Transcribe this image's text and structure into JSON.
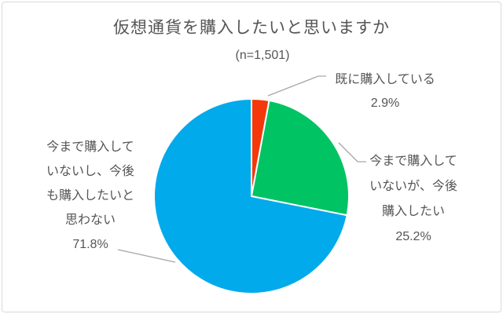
{
  "title": "仮想通貨を購入したいと思いますか",
  "subtitle": "(n=1,501)",
  "chart_data": {
    "type": "pie",
    "title": "仮想通貨を購入したいと思いますか",
    "subtitle": "(n=1,501)",
    "start_angle_deg": -90,
    "direction": "clockwise",
    "legend_position": "callout-labels",
    "slices": [
      {
        "label": "既に購入している",
        "value": 2.9,
        "percent_label": "2.9%",
        "color": "#F4380B"
      },
      {
        "label": "今まで購入していないが、今後購入したい",
        "value": 25.2,
        "percent_label": "25.2%",
        "color": "#00C463"
      },
      {
        "label": "今まで購入していないし、今後も購入したいと思わない",
        "value": 71.8,
        "percent_label": "71.8%",
        "color": "#00AAEB"
      }
    ]
  },
  "callouts": {
    "already": {
      "lines": [
        "既に購入している",
        "2.9%"
      ]
    },
    "future": {
      "lines": [
        "今まで購入して",
        "いないが、今後",
        "購入したい",
        "25.2%"
      ]
    },
    "never": {
      "lines": [
        "今まで購入して",
        "いないし、今後",
        "も購入したいと",
        "思わない",
        "71.8%"
      ]
    }
  },
  "colors": {
    "text": "#555555",
    "leader_line": "#A6A6A6",
    "frame_border": "#D9D9D9",
    "background": "#FFFFFF",
    "slice_separator": "#FFFFFF"
  }
}
